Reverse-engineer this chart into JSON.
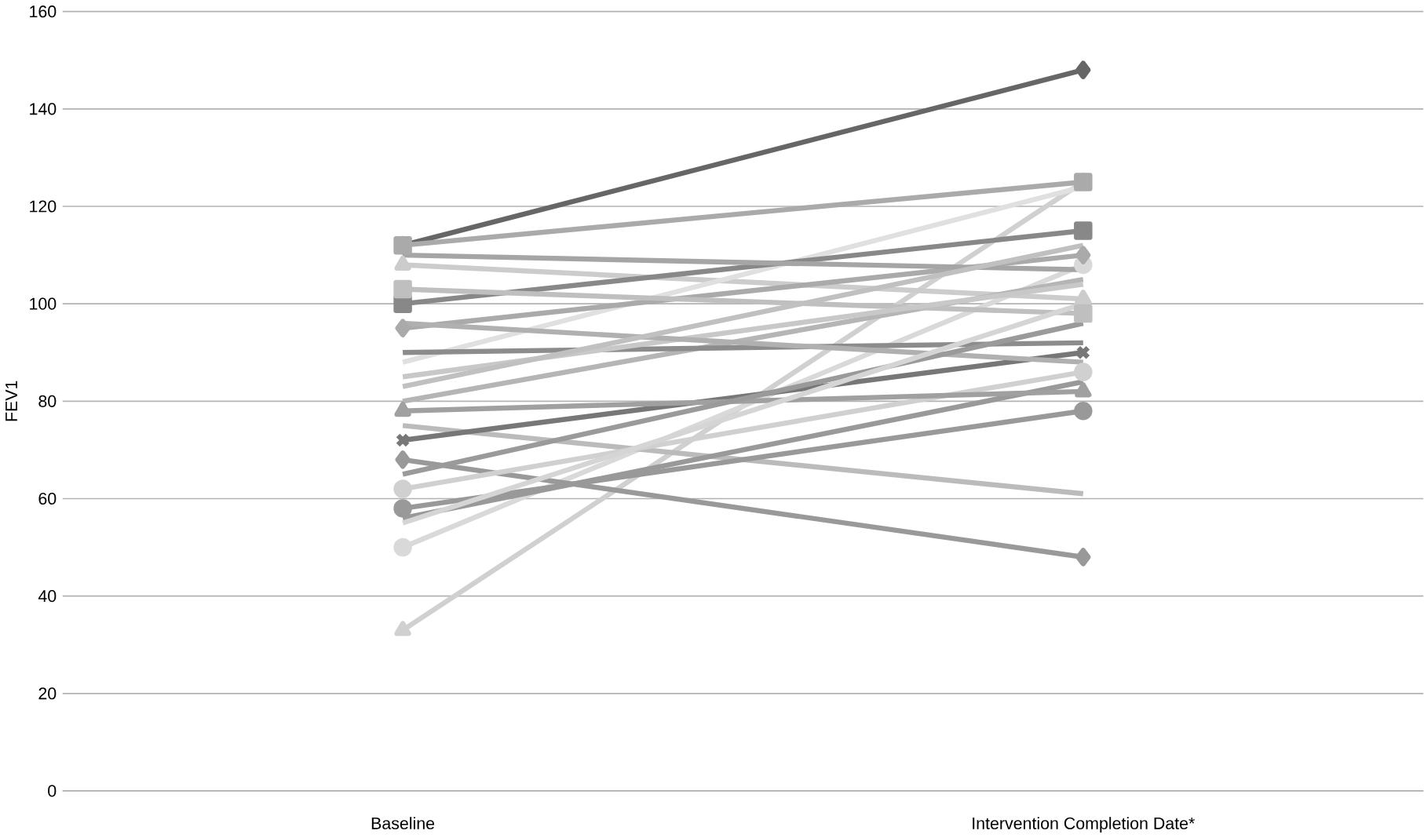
{
  "chart_data": {
    "type": "line",
    "ylabel": "FEV1",
    "categories": [
      "Baseline",
      "Intervention Completion Date*"
    ],
    "ylim": [
      0,
      160
    ],
    "yticks": [
      0,
      20,
      40,
      60,
      80,
      100,
      120,
      140,
      160
    ],
    "grid": "y",
    "series": [
      {
        "color": "#666666",
        "marker": "diamond",
        "values": [
          112,
          148
        ]
      },
      {
        "color": "#d0d0d0",
        "marker": "triangle",
        "values": [
          33,
          125
        ]
      },
      {
        "color": "#d9d9d9",
        "marker": "circle",
        "values": [
          50,
          108
        ]
      },
      {
        "color": "#999999",
        "marker": "diamond",
        "values": [
          68,
          48
        ]
      },
      {
        "color": "#bbbbbb",
        "marker": "none",
        "values": [
          75,
          61
        ]
      },
      {
        "color": "#999999",
        "marker": "circle",
        "values": [
          58,
          78
        ]
      },
      {
        "color": "#aaaaaa",
        "marker": "square",
        "values": [
          112,
          125
        ]
      },
      {
        "color": "#cccccc",
        "marker": "triangle",
        "values": [
          108,
          101
        ]
      },
      {
        "color": "#d0d0d0",
        "marker": "circle",
        "values": [
          62,
          86
        ]
      },
      {
        "color": "#e0e0e0",
        "marker": "none",
        "values": [
          88,
          124
        ]
      },
      {
        "color": "#888888",
        "marker": "square",
        "values": [
          100,
          115
        ]
      },
      {
        "color": "#aaaaaa",
        "marker": "diamond",
        "values": [
          95,
          110
        ]
      },
      {
        "color": "#777777",
        "marker": "cross",
        "values": [
          72,
          90
        ]
      },
      {
        "color": "#999999",
        "marker": "none",
        "values": [
          56,
          84
        ]
      },
      {
        "color": "#b5b5b5",
        "marker": "none",
        "values": [
          80,
          105
        ]
      },
      {
        "color": "#bfbfbf",
        "marker": "square",
        "values": [
          103,
          98
        ]
      },
      {
        "color": "#8c8c8c",
        "marker": "none",
        "values": [
          90,
          92
        ]
      },
      {
        "color": "#c8c8c8",
        "marker": "none",
        "values": [
          85,
          104
        ]
      },
      {
        "color": "#a0a0a0",
        "marker": "triangle",
        "values": [
          78,
          82
        ]
      },
      {
        "color": "#b0b0b0",
        "marker": "none",
        "values": [
          96,
          88
        ]
      },
      {
        "color": "#9a9a9a",
        "marker": "none",
        "values": [
          65,
          96
        ]
      },
      {
        "color": "#a5a5a5",
        "marker": "none",
        "values": [
          110,
          107
        ]
      },
      {
        "color": "#d5d5d5",
        "marker": "none",
        "values": [
          55,
          100
        ]
      },
      {
        "color": "#c0c0c0",
        "marker": "none",
        "values": [
          83,
          112
        ]
      }
    ]
  }
}
